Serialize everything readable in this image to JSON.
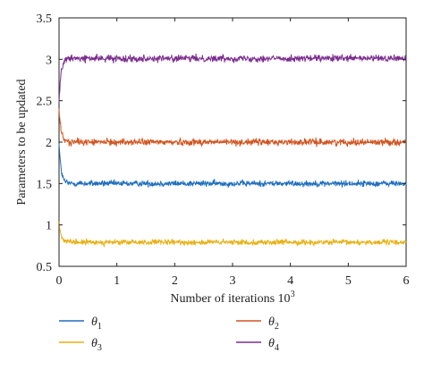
{
  "chart_data": {
    "type": "line",
    "title": "",
    "xlabel": "Number of iterations 10",
    "xlabel_superscript": "3",
    "ylabel": "Parameters to be updated",
    "xlim": [
      0,
      6
    ],
    "ylim": [
      0.5,
      3.5
    ],
    "x_ticks": [
      "0",
      "1",
      "2",
      "3",
      "4",
      "5",
      "6"
    ],
    "y_ticks": [
      "0.5",
      "1",
      "1.5",
      "2",
      "2.5",
      "3",
      "3.5"
    ],
    "grid": false,
    "legend_position": "below",
    "series": [
      {
        "name": "θ",
        "subscript": "1",
        "color": "#1f6fbf",
        "start": 2.0,
        "steady": 1.5,
        "noise": 0.018
      },
      {
        "name": "θ",
        "subscript": "2",
        "color": "#d2541f",
        "start": 2.4,
        "steady": 2.0,
        "noise": 0.02
      },
      {
        "name": "θ",
        "subscript": "3",
        "color": "#e8b010",
        "start": 1.06,
        "steady": 0.79,
        "noise": 0.016
      },
      {
        "name": "θ",
        "subscript": "4",
        "color": "#7b2d8e",
        "start": 2.5,
        "steady": 3.01,
        "noise": 0.02
      }
    ]
  }
}
